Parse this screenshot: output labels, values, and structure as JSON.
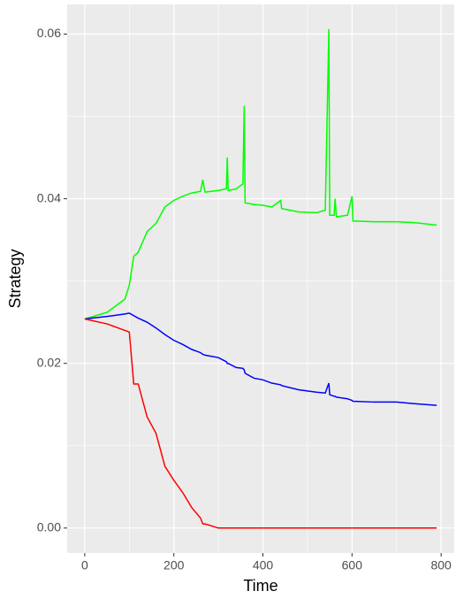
{
  "chart_data": {
    "type": "line",
    "x": [
      0,
      50,
      90,
      100,
      110,
      120,
      140,
      160,
      180,
      200,
      220,
      240,
      260,
      265,
      270,
      300,
      318,
      320,
      322,
      340,
      355,
      358,
      360,
      380,
      400,
      420,
      440,
      442,
      480,
      520,
      540,
      548,
      550,
      560,
      562,
      565,
      590,
      600,
      602,
      650,
      700,
      740,
      790
    ],
    "series": [
      {
        "color": "#00ff00",
        "values": [
          0.0254,
          0.0262,
          0.0278,
          0.0295,
          0.033,
          0.0335,
          0.036,
          0.037,
          0.039,
          0.0398,
          0.0403,
          0.0407,
          0.0409,
          0.0423,
          0.0408,
          0.041,
          0.0412,
          0.045,
          0.041,
          0.0412,
          0.0418,
          0.0513,
          0.0395,
          0.0393,
          0.0392,
          0.039,
          0.0398,
          0.0388,
          0.0384,
          0.0383,
          0.0386,
          0.0606,
          0.038,
          0.038,
          0.04,
          0.0378,
          0.038,
          0.0403,
          0.0373,
          0.0372,
          0.0372,
          0.0371,
          0.0368
        ]
      },
      {
        "color": "#0000ff",
        "values": [
          0.0254,
          0.0257,
          0.026,
          0.0261,
          0.0258,
          0.0255,
          0.025,
          0.0243,
          0.0235,
          0.0228,
          0.0223,
          0.0217,
          0.0213,
          0.0211,
          0.021,
          0.0207,
          0.0202,
          0.02,
          0.02,
          0.0195,
          0.0194,
          0.0192,
          0.0188,
          0.0182,
          0.018,
          0.0176,
          0.0174,
          0.0173,
          0.0168,
          0.0165,
          0.0164,
          0.0176,
          0.0162,
          0.016,
          0.016,
          0.0159,
          0.0157,
          0.0155,
          0.0154,
          0.0153,
          0.0153,
          0.0151,
          0.0149
        ]
      },
      {
        "color": "#ff0000",
        "values": [
          0.0254,
          0.0248,
          0.024,
          0.0238,
          0.0175,
          0.0175,
          0.0135,
          0.0115,
          0.0075,
          0.0058,
          0.0043,
          0.0025,
          0.0012,
          0.0005,
          0.0005,
          0,
          0,
          0,
          0,
          0,
          0,
          0,
          0,
          0,
          0,
          0,
          0,
          0,
          0,
          0,
          0,
          0,
          0,
          0,
          0,
          0,
          0,
          0,
          0,
          0,
          0,
          0,
          0
        ]
      }
    ],
    "xlabel": "Time",
    "ylabel": "Strategy",
    "xlim": [
      -39.5,
      829.5
    ],
    "xticks": [
      0,
      200,
      400,
      600,
      800
    ],
    "ylim": [
      -0.00303,
      0.0636
    ],
    "yticks": [
      {
        "value": 0,
        "label": "0.00"
      },
      {
        "value": 0.02,
        "label": "0.02"
      },
      {
        "value": 0.04,
        "label": "0.04"
      },
      {
        "value": 0.06,
        "label": "0.06"
      }
    ],
    "grid": true
  }
}
